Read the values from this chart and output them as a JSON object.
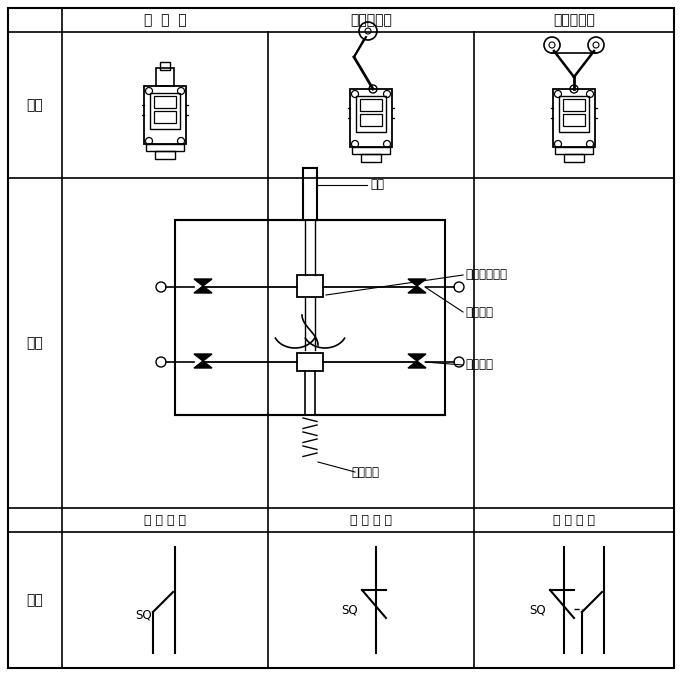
{
  "bg_color": "#ffffff",
  "header_row1": [
    "直  动  式",
    "单轮旋转式",
    "双轮旋转式"
  ],
  "row_labels": [
    "外形",
    "结构",
    "符号"
  ],
  "symbol_headers": [
    "常 开 触 点",
    "常 闭 触 点",
    "复 合 触 点"
  ],
  "struct_labels": [
    "推杆",
    "弯形片状弹簧",
    "常开触点",
    "常闭触点",
    "恢复弹簧"
  ],
  "col0": 8,
  "col1": 62,
  "col2": 268,
  "col3": 474,
  "col4": 674,
  "row0": 8,
  "row1": 32,
  "row2": 178,
  "row3": 508,
  "row4": 532,
  "row5": 668
}
